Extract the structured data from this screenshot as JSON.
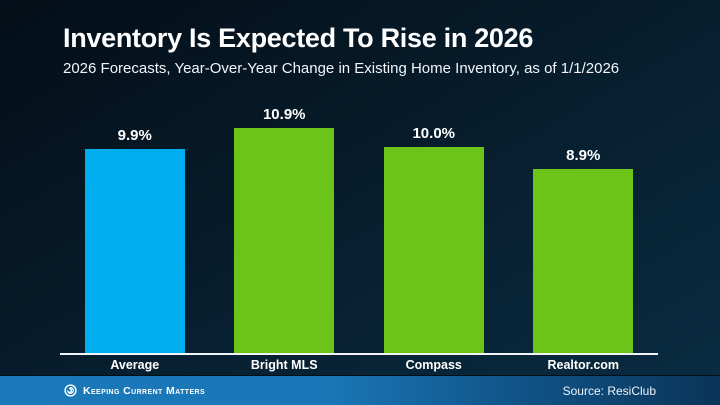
{
  "header": {
    "title": "Inventory Is Expected To Rise in 2026",
    "subtitle": "2026 Forecasts, Year-Over-Year Change in Existing Home Inventory, as of 1/1/2026"
  },
  "chart_data": {
    "type": "bar",
    "categories": [
      "Average",
      "Bright MLS",
      "Compass",
      "Realtor.com"
    ],
    "values": [
      9.9,
      10.9,
      10.0,
      8.9
    ],
    "value_labels": [
      "9.9%",
      "10.9%",
      "10.0%",
      "8.9%"
    ],
    "bar_colors": [
      "#00adee",
      "#6bc417",
      "#6bc417",
      "#6bc417"
    ],
    "title": "Inventory Is Expected To Rise in 2026",
    "xlabel": "",
    "ylabel": "Year-over-year change in existing home inventory (%)",
    "ylim": [
      0,
      12
    ],
    "grid": false,
    "legend": false
  },
  "footer": {
    "brand": "Keeping Current Matters",
    "source": "Source: ResiClub"
  },
  "colors": {
    "background_top": "#040e17",
    "background_bottom": "#0a2c42",
    "accent_blue": "#00adee",
    "accent_green": "#6bc417",
    "footer_blue": "#1a79ba",
    "footer_dark": "#0a3458",
    "text": "#ffffff"
  }
}
